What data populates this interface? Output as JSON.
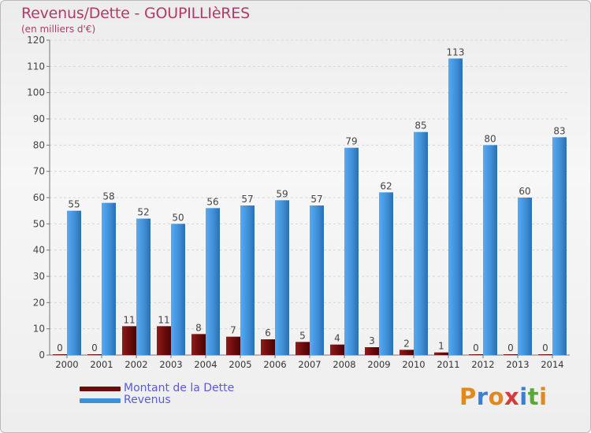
{
  "title": "Revenus/Dette - GOUPILLIèRES",
  "subtitle": "(en milliers d'€)",
  "logo": {
    "text": "Proxiti"
  },
  "chart_data": {
    "type": "bar",
    "categories": [
      "2000",
      "2001",
      "2002",
      "2003",
      "2004",
      "2005",
      "2006",
      "2007",
      "2008",
      "2009",
      "2010",
      "2011",
      "2012",
      "2013",
      "2014"
    ],
    "series": [
      {
        "name": "Montant de la Dette",
        "color": "#6b0b0b",
        "values": [
          0,
          0,
          11,
          11,
          8,
          7,
          6,
          5,
          4,
          3,
          2,
          1,
          0,
          0,
          0
        ]
      },
      {
        "name": "Revenus",
        "color": "#3f8fd8",
        "values": [
          55,
          58,
          52,
          50,
          56,
          57,
          59,
          57,
          79,
          62,
          85,
          113,
          80,
          60,
          83
        ]
      }
    ],
    "ylim": [
      0,
      120
    ],
    "yticks": [
      0,
      10,
      20,
      30,
      40,
      50,
      60,
      70,
      80,
      90,
      100,
      110,
      120
    ],
    "grid": true
  }
}
